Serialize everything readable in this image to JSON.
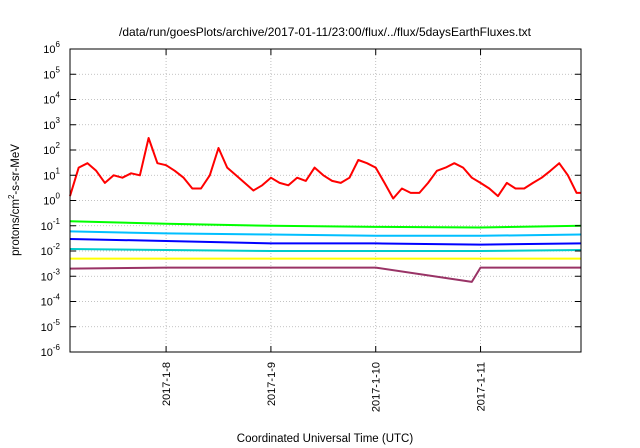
{
  "chart_data": {
    "type": "line",
    "title": "/data/run/goesPlots/archive/2017-01-11/23:00/flux/../flux/5daysEarthFluxes.txt",
    "xlabel": "Coordinated Universal Time (UTC)",
    "ylabel": "protons/cm2-s-sr-MeV",
    "ylabel_parts": {
      "pre": "protons/cm",
      "sup": "2",
      "post": "-s-sr-MeV"
    },
    "yscale": "log",
    "ylim": [
      1e-06,
      1000000.0
    ],
    "y_ticks": [
      {
        "base": "10",
        "exp": "-6",
        "value": -6
      },
      {
        "base": "10",
        "exp": "-5",
        "value": -5
      },
      {
        "base": "10",
        "exp": "-4",
        "value": -4
      },
      {
        "base": "10",
        "exp": "-3",
        "value": -3
      },
      {
        "base": "10",
        "exp": "-2",
        "value": -2
      },
      {
        "base": "10",
        "exp": "-1",
        "value": -1
      },
      {
        "base": "10",
        "exp": "0",
        "value": 0
      },
      {
        "base": "10",
        "exp": "1",
        "value": 1
      },
      {
        "base": "10",
        "exp": "2",
        "value": 2
      },
      {
        "base": "10",
        "exp": "3",
        "value": 3
      },
      {
        "base": "10",
        "exp": "4",
        "value": 4
      },
      {
        "base": "10",
        "exp": "5",
        "value": 5
      },
      {
        "base": "10",
        "exp": "6",
        "value": 6
      }
    ],
    "xlim": [
      "2017-01-07 02:00",
      "2017-01-11 23:00"
    ],
    "x_ticks": [
      "2017-1-8",
      "2017-1-9",
      "2017-1-10",
      "2017-1-11"
    ],
    "grid": true,
    "series": [
      {
        "color": "#ff0000",
        "x": [
          "2017-01-07 02:00",
          "2017-01-07 04:00",
          "2017-01-07 06:00",
          "2017-01-07 08:00",
          "2017-01-07 10:00",
          "2017-01-07 12:00",
          "2017-01-07 14:00",
          "2017-01-07 16:00",
          "2017-01-07 18:00",
          "2017-01-07 20:00",
          "2017-01-07 22:00",
          "2017-01-08 00:00",
          "2017-01-08 02:00",
          "2017-01-08 04:00",
          "2017-01-08 06:00",
          "2017-01-08 08:00",
          "2017-01-08 10:00",
          "2017-01-08 12:00",
          "2017-01-08 14:00",
          "2017-01-08 16:00",
          "2017-01-08 18:00",
          "2017-01-08 20:00",
          "2017-01-08 22:00",
          "2017-01-09 00:00",
          "2017-01-09 02:00",
          "2017-01-09 04:00",
          "2017-01-09 06:00",
          "2017-01-09 08:00",
          "2017-01-09 10:00",
          "2017-01-09 12:00",
          "2017-01-09 14:00",
          "2017-01-09 16:00",
          "2017-01-09 18:00",
          "2017-01-09 20:00",
          "2017-01-09 22:00",
          "2017-01-10 00:00",
          "2017-01-10 02:00",
          "2017-01-10 04:00",
          "2017-01-10 06:00",
          "2017-01-10 08:00",
          "2017-01-10 10:00",
          "2017-01-10 12:00",
          "2017-01-10 14:00",
          "2017-01-10 16:00",
          "2017-01-10 18:00",
          "2017-01-10 20:00",
          "2017-01-10 22:00",
          "2017-01-11 00:00",
          "2017-01-11 02:00",
          "2017-01-11 04:00",
          "2017-01-11 06:00",
          "2017-01-11 08:00",
          "2017-01-11 10:00",
          "2017-01-11 12:00",
          "2017-01-11 14:00",
          "2017-01-11 16:00",
          "2017-01-11 18:00",
          "2017-01-11 20:00",
          "2017-01-11 22:00",
          "2017-01-11 23:00"
        ],
        "values": [
          1.5,
          20,
          30,
          15,
          5,
          10,
          8,
          12,
          10,
          300,
          30,
          25,
          15,
          8,
          3,
          3,
          10,
          120,
          20,
          10,
          5,
          2.5,
          4,
          8,
          5,
          4,
          8,
          6,
          20,
          10,
          6,
          5,
          8,
          40,
          30,
          20,
          5,
          1.2,
          3,
          2,
          2,
          5,
          15,
          20,
          30,
          20,
          8,
          5,
          3,
          1.5,
          5,
          3,
          3,
          5,
          8,
          15,
          30,
          10,
          2,
          2
        ]
      },
      {
        "color": "#00ff00",
        "x": [
          "2017-01-07 02:00",
          "2017-01-08 00:00",
          "2017-01-09 00:00",
          "2017-01-10 00:00",
          "2017-01-11 00:00",
          "2017-01-11 23:00"
        ],
        "values": [
          0.15,
          0.12,
          0.1,
          0.09,
          0.085,
          0.1
        ]
      },
      {
        "color": "#00bfff",
        "x": [
          "2017-01-07 02:00",
          "2017-01-08 00:00",
          "2017-01-09 00:00",
          "2017-01-10 00:00",
          "2017-01-11 00:00",
          "2017-01-11 23:00"
        ],
        "values": [
          0.06,
          0.05,
          0.045,
          0.04,
          0.04,
          0.045
        ]
      },
      {
        "color": "#0000ff",
        "x": [
          "2017-01-07 02:00",
          "2017-01-08 00:00",
          "2017-01-09 00:00",
          "2017-01-10 00:00",
          "2017-01-11 00:00",
          "2017-01-11 23:00"
        ],
        "values": [
          0.03,
          0.025,
          0.02,
          0.02,
          0.018,
          0.02
        ]
      },
      {
        "color": "#00cccc",
        "x": [
          "2017-01-07 02:00",
          "2017-01-08 00:00",
          "2017-01-09 00:00",
          "2017-01-10 00:00",
          "2017-01-11 00:00",
          "2017-01-11 23:00"
        ],
        "values": [
          0.012,
          0.011,
          0.01,
          0.01,
          0.01,
          0.011
        ]
      },
      {
        "color": "#ffff00",
        "x": [
          "2017-01-07 02:00",
          "2017-01-08 00:00",
          "2017-01-09 00:00",
          "2017-01-10 00:00",
          "2017-01-11 00:00",
          "2017-01-11 23:00"
        ],
        "values": [
          0.005,
          0.005,
          0.005,
          0.005,
          0.005,
          0.005
        ]
      },
      {
        "color": "#993366",
        "x": [
          "2017-01-07 02:00",
          "2017-01-08 00:00",
          "2017-01-09 00:00",
          "2017-01-10 00:00",
          "2017-01-10 22:00",
          "2017-01-11 00:00",
          "2017-01-11 23:00"
        ],
        "values": [
          0.002,
          0.0022,
          0.0022,
          0.0022,
          0.0006,
          0.0022,
          0.0022
        ]
      }
    ]
  }
}
